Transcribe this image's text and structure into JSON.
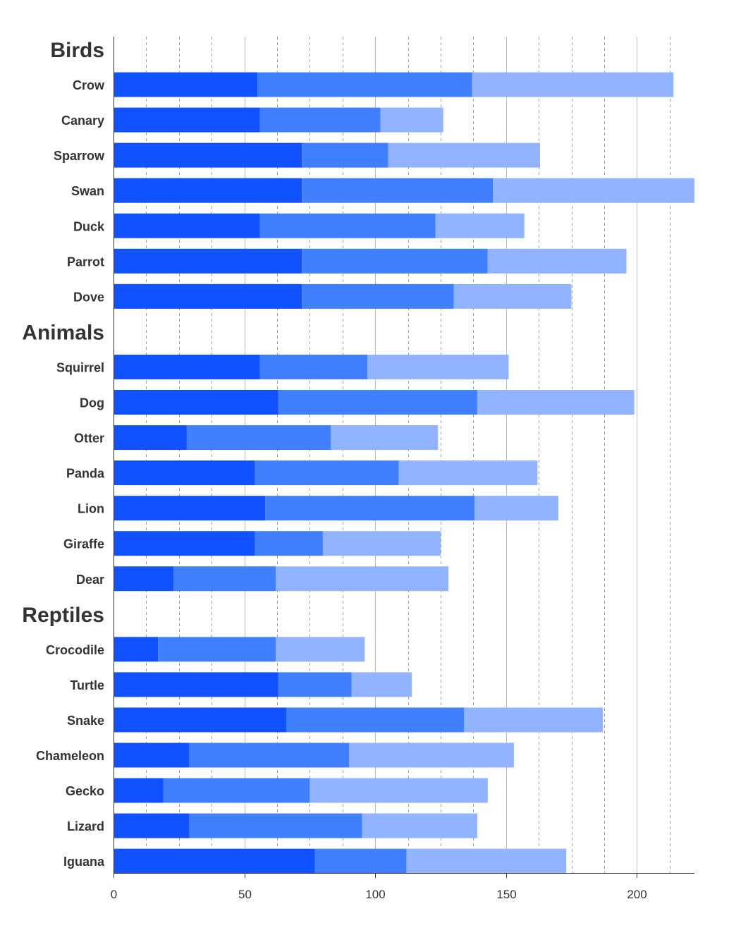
{
  "chart_data": {
    "type": "bar",
    "orientation": "horizontal",
    "stacked": true,
    "xlim": [
      0,
      222
    ],
    "x_ticks": [
      0,
      50,
      100,
      150,
      200
    ],
    "x_minor_step": 12.5,
    "grid": true,
    "colors": [
      "#1052ff",
      "#4080ff",
      "#92b3ff"
    ],
    "groups": [
      {
        "label": "Birds",
        "categories": [
          {
            "label": "Crow",
            "values": [
              55,
              82,
              77
            ]
          },
          {
            "label": "Canary",
            "values": [
              56,
              46,
              24
            ]
          },
          {
            "label": "Sparrow",
            "values": [
              72,
              33,
              58
            ]
          },
          {
            "label": "Swan",
            "values": [
              72,
              73,
              77
            ]
          },
          {
            "label": "Duck",
            "values": [
              56,
              67,
              34
            ]
          },
          {
            "label": "Parrot",
            "values": [
              72,
              71,
              53
            ]
          },
          {
            "label": "Dove",
            "values": [
              72,
              58,
              45
            ]
          }
        ]
      },
      {
        "label": "Animals",
        "categories": [
          {
            "label": "Squirrel",
            "values": [
              56,
              41,
              54
            ]
          },
          {
            "label": "Dog",
            "values": [
              63,
              76,
              60
            ]
          },
          {
            "label": "Otter",
            "values": [
              28,
              55,
              41
            ]
          },
          {
            "label": "Panda",
            "values": [
              54,
              55,
              53
            ]
          },
          {
            "label": "Lion",
            "values": [
              58,
              80,
              32
            ]
          },
          {
            "label": "Giraffe",
            "values": [
              54,
              26,
              45
            ]
          },
          {
            "label": "Dear",
            "values": [
              23,
              39,
              66
            ]
          }
        ]
      },
      {
        "label": "Reptiles",
        "categories": [
          {
            "label": "Crocodile",
            "values": [
              17,
              45,
              34
            ]
          },
          {
            "label": "Turtle",
            "values": [
              63,
              28,
              23
            ]
          },
          {
            "label": "Snake",
            "values": [
              66,
              68,
              53
            ]
          },
          {
            "label": "Chameleon",
            "values": [
              29,
              61,
              63
            ]
          },
          {
            "label": "Gecko",
            "values": [
              19,
              56,
              68
            ]
          },
          {
            "label": "Lizard",
            "values": [
              29,
              66,
              44
            ]
          },
          {
            "label": "Iguana",
            "values": [
              77,
              35,
              61
            ]
          }
        ]
      }
    ]
  }
}
